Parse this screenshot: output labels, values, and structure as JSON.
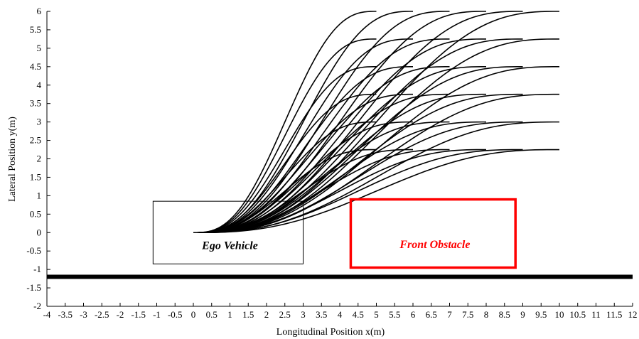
{
  "chart_data": {
    "type": "line",
    "xlabel": "Longitudinal Position x(m)",
    "ylabel": "Lateral Position y(m)",
    "xlim": [
      -4,
      12
    ],
    "ylim": [
      -2,
      6
    ],
    "xticks": [
      -4,
      -3.5,
      -3,
      -2.5,
      -2,
      -1.5,
      -1,
      -0.5,
      0,
      0.5,
      1,
      1.5,
      2,
      2.5,
      3,
      3.5,
      4,
      4.5,
      5,
      5.5,
      6,
      6.5,
      7,
      7.5,
      8,
      8.5,
      9,
      9.5,
      10,
      10.5,
      11,
      11.5,
      12
    ],
    "yticks": [
      -2,
      -1.5,
      -1,
      -0.5,
      0,
      0.5,
      1,
      1.5,
      2,
      2.5,
      3,
      3.5,
      4,
      4.5,
      5,
      5.5,
      6
    ],
    "grid": false,
    "trajectory_family": {
      "start": [
        0,
        0
      ],
      "end_x": [
        5,
        6,
        7,
        8,
        9,
        10
      ],
      "end_y": [
        2.25,
        3.0,
        3.75,
        4.5,
        5.25,
        6.0
      ],
      "color": "#000000"
    },
    "boundary_line": {
      "y": -1.2,
      "x_range": [
        -4,
        12
      ],
      "color": "#000000"
    },
    "ego_vehicle": {
      "label": "Ego Vehicle",
      "x": [
        -1.1,
        3.0
      ],
      "y": [
        -0.85,
        0.85
      ],
      "color": "#000000"
    },
    "front_obstacle": {
      "label": "Front Obstacle",
      "x": [
        4.3,
        8.8
      ],
      "y": [
        -0.95,
        0.9
      ],
      "color": "#ff0000"
    }
  }
}
